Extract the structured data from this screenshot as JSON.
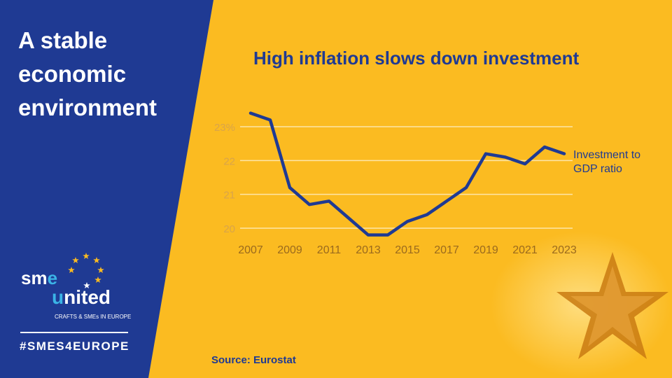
{
  "panel": {
    "headline": "A stable economic environment",
    "logo_text": "smeunited",
    "logo_tagline": "CRAFTS & SMEs IN EUROPE",
    "hashtag": "#SMES4EUROPE"
  },
  "colors": {
    "blue": "#1f3a93",
    "yellow": "#fbbb21",
    "accent_cyan": "#3bb4e6"
  },
  "source": "Source: Eurostat",
  "chart_data": {
    "type": "line",
    "title": "High inflation slows down investment",
    "xlabel": "",
    "ylabel": "",
    "x": [
      2007,
      2008,
      2009,
      2010,
      2011,
      2012,
      2013,
      2014,
      2015,
      2016,
      2017,
      2018,
      2019,
      2020,
      2021,
      2022,
      2023
    ],
    "series": [
      {
        "name": "Investment to GDP ratio",
        "values": [
          23.4,
          23.2,
          21.2,
          20.7,
          20.8,
          20.3,
          19.8,
          19.8,
          20.2,
          20.4,
          20.8,
          21.2,
          22.2,
          22.1,
          21.9,
          22.4,
          22.2
        ]
      }
    ],
    "x_tick_labels": [
      "2007",
      "2009",
      "2011",
      "2013",
      "2015",
      "2017",
      "2019",
      "2021",
      "2023"
    ],
    "y_ticks": [
      20,
      21,
      22,
      23
    ],
    "y_tick_labels": [
      "20",
      "21",
      "22",
      "23%"
    ],
    "ylim": [
      19.7,
      23.5
    ],
    "grid": true,
    "legend": "right"
  }
}
